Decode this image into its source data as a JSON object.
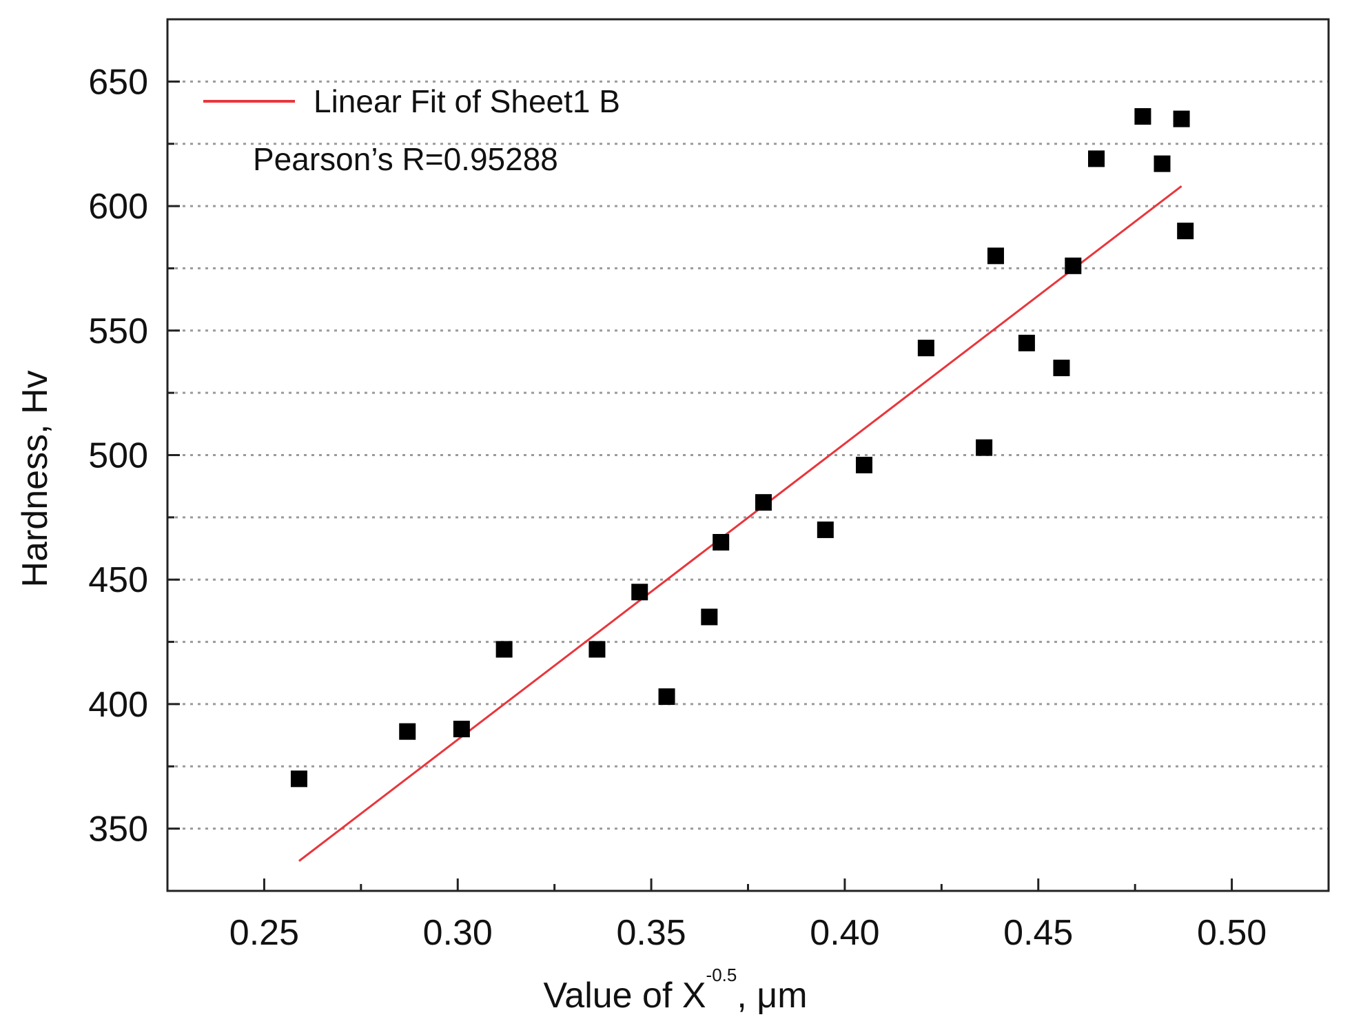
{
  "chart_data": {
    "type": "scatter",
    "xlabel": "Value of X",
    "xlabel_superscript": "-0.5",
    "xlabel_suffix": ", μm",
    "ylabel": "Hardness, Hv",
    "xlim": [
      0.225,
      0.525
    ],
    "ylim": [
      325,
      675
    ],
    "x_ticks": [
      0.25,
      0.3,
      0.35,
      0.4,
      0.45,
      0.5
    ],
    "x_tick_labels": [
      "0.25",
      "0.30",
      "0.35",
      "0.40",
      "0.45",
      "0.50"
    ],
    "y_ticks": [
      350,
      400,
      450,
      500,
      550,
      600,
      650
    ],
    "y_tick_labels": [
      "350",
      "400",
      "450",
      "500",
      "550",
      "600",
      "650"
    ],
    "y_gridlines": [
      350,
      375,
      400,
      425,
      450,
      475,
      500,
      525,
      550,
      575,
      600,
      625,
      650
    ],
    "grid": "horizontal dotted",
    "legend": {
      "position": "top-left",
      "entries": [
        {
          "label": "Linear Fit of Sheet1 B",
          "color": "#e8363c"
        }
      ]
    },
    "annotation": "Pearson’s R=0.95288",
    "series": [
      {
        "name": "Sheet1 B",
        "marker": "square",
        "color": "#000000",
        "points": [
          [
            0.259,
            370
          ],
          [
            0.287,
            389
          ],
          [
            0.301,
            390
          ],
          [
            0.312,
            422
          ],
          [
            0.336,
            422
          ],
          [
            0.347,
            445
          ],
          [
            0.354,
            403
          ],
          [
            0.365,
            435
          ],
          [
            0.368,
            465
          ],
          [
            0.379,
            481
          ],
          [
            0.395,
            470
          ],
          [
            0.405,
            496
          ],
          [
            0.421,
            543
          ],
          [
            0.436,
            503
          ],
          [
            0.439,
            580
          ],
          [
            0.447,
            545
          ],
          [
            0.456,
            535
          ],
          [
            0.459,
            576
          ],
          [
            0.465,
            619
          ],
          [
            0.477,
            636
          ],
          [
            0.482,
            617
          ],
          [
            0.487,
            635
          ],
          [
            0.488,
            590
          ]
        ]
      },
      {
        "name": "Linear Fit of Sheet1 B",
        "type": "line",
        "color": "#e8363c",
        "points": [
          [
            0.259,
            337
          ],
          [
            0.487,
            608
          ]
        ]
      }
    ]
  }
}
